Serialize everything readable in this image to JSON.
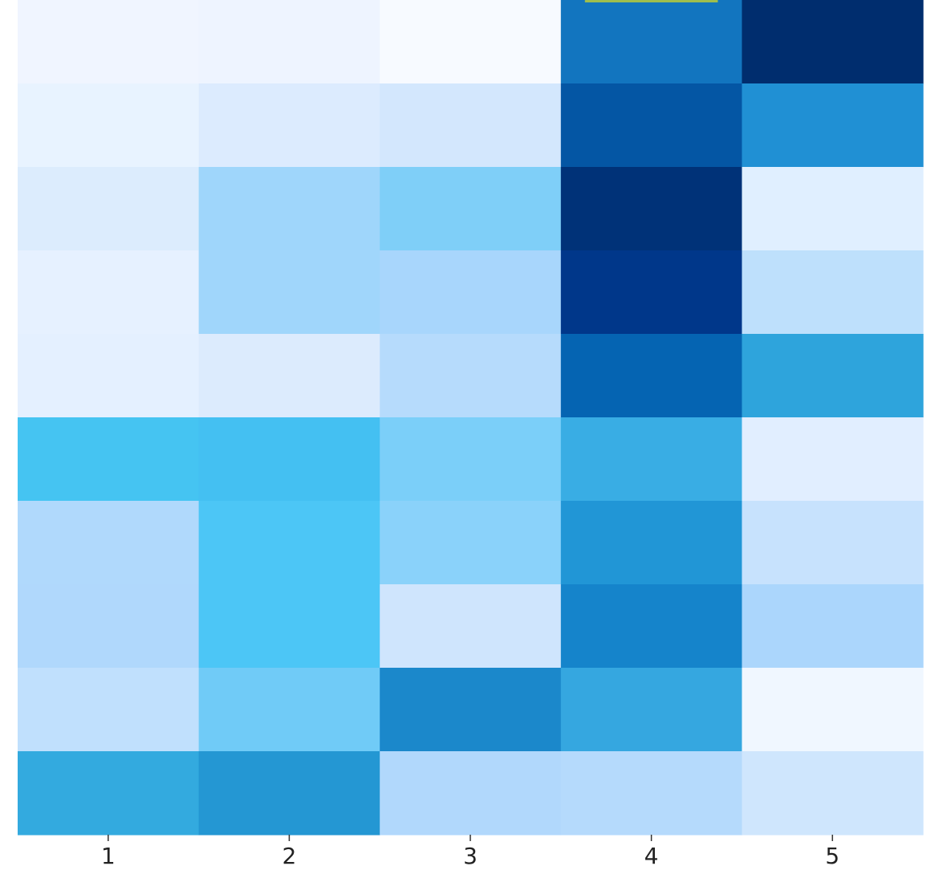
{
  "chart_data": {
    "type": "heatmap",
    "title": "",
    "xlabel": "",
    "ylabel": "",
    "x_categories": [
      "1",
      "2",
      "3",
      "4",
      "5"
    ],
    "colorscale": "Blues",
    "values": [
      [
        0.06,
        0.06,
        0.02,
        0.7,
        1.0
      ],
      [
        0.08,
        0.13,
        0.17,
        0.8,
        0.63
      ],
      [
        0.13,
        0.35,
        0.42,
        1.0,
        0.12
      ],
      [
        0.09,
        0.35,
        0.32,
        0.97,
        0.24
      ],
      [
        0.1,
        0.13,
        0.28,
        0.78,
        0.6
      ],
      [
        0.52,
        0.5,
        0.4,
        0.55,
        0.1
      ],
      [
        0.28,
        0.5,
        0.38,
        0.63,
        0.22
      ],
      [
        0.3,
        0.52,
        0.2,
        0.68,
        0.3
      ],
      [
        0.25,
        0.45,
        0.67,
        0.57,
        0.05
      ],
      [
        0.56,
        0.62,
        0.3,
        0.28,
        0.18
      ]
    ],
    "cell_colors": [
      [
        "#f0f5ff",
        "#eef4ff",
        "#f7faff",
        "#1275bf",
        "#002d6e"
      ],
      [
        "#e8f3ff",
        "#dcebfe",
        "#d3e7fd",
        "#0456a4",
        "#2090d4"
      ],
      [
        "#dcecfd",
        "#9fd6fb",
        "#7fcff8",
        "#003278",
        "#e0efff"
      ],
      [
        "#e6f1ff",
        "#a0d6fb",
        "#a8d6fc",
        "#00378a",
        "#bee0fc"
      ],
      [
        "#e4f0ff",
        "#dcebfd",
        "#b6dbfc",
        "#0564b2",
        "#2ea4dc"
      ],
      [
        "#45c4f2",
        "#44c0f2",
        "#7bcff9",
        "#39ade4",
        "#e1eeff"
      ],
      [
        "#b0d9fc",
        "#4cc6f6",
        "#8ad2fa",
        "#2196d6",
        "#c7e2fd"
      ],
      [
        "#b0d8fc",
        "#4cc6f6",
        "#cfe5fd",
        "#1584cb",
        "#abd6fc"
      ],
      [
        "#c0e0fd",
        "#70cbf7",
        "#1b88cb",
        "#35a7e0",
        "#f0f7ff"
      ],
      [
        "#33aadf",
        "#2497d3",
        "#b1d8fc",
        "#b5dafc",
        "#cfe6fd"
      ]
    ],
    "top_edge_accent": "#9ebe4e",
    "grid": false,
    "legend": "none"
  }
}
